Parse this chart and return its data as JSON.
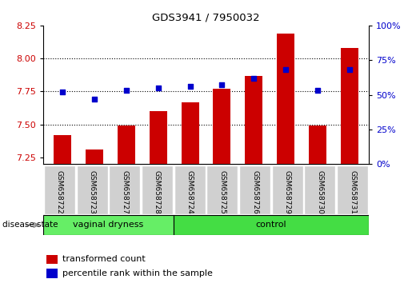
{
  "title": "GDS3941 / 7950032",
  "samples": [
    "GSM658722",
    "GSM658723",
    "GSM658727",
    "GSM658728",
    "GSM658724",
    "GSM658725",
    "GSM658726",
    "GSM658729",
    "GSM658730",
    "GSM658731"
  ],
  "transformed_count": [
    7.42,
    7.31,
    7.49,
    7.6,
    7.67,
    7.77,
    7.87,
    8.19,
    7.49,
    8.08
  ],
  "percentile_rank": [
    52,
    47,
    53,
    55,
    56,
    57,
    62,
    68,
    53,
    68
  ],
  "ylim_left": [
    7.2,
    8.25
  ],
  "ylim_right": [
    0,
    100
  ],
  "yticks_left": [
    7.25,
    7.5,
    7.75,
    8.0,
    8.25
  ],
  "yticks_right": [
    0,
    25,
    50,
    75,
    100
  ],
  "grid_values": [
    7.5,
    7.75,
    8.0
  ],
  "bar_color": "#cc0000",
  "dot_color": "#0000cc",
  "vaginal_dryness_color": "#66ee66",
  "control_color": "#44dd44",
  "label_bg_color": "#d0d0d0",
  "legend_bar_label": "transformed count",
  "legend_dot_label": "percentile rank within the sample",
  "disease_state_label": "disease state",
  "vaginal_dryness_text": "vaginal dryness",
  "control_text": "control",
  "left_tick_color": "#cc0000",
  "right_tick_color": "#0000cc",
  "base_value": 7.2,
  "n_vaginal": 4,
  "n_control": 6
}
